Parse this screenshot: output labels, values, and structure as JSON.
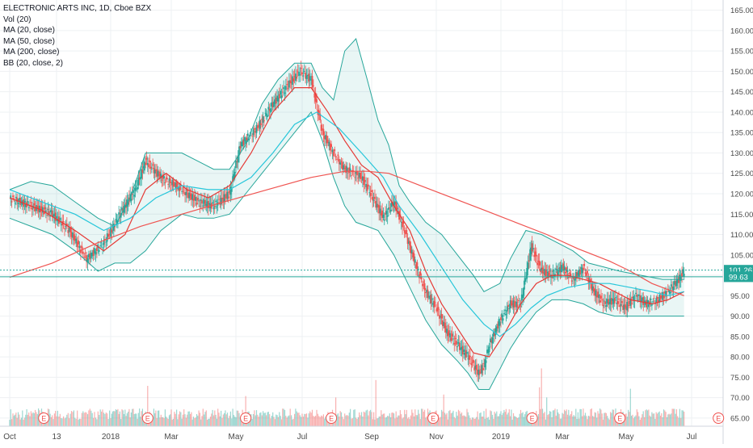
{
  "legend": {
    "title": "ELECTRONIC ARTS INC, 1D, Cboe BZX",
    "vol": "Vol (20)",
    "ma20": "MA (20, close)",
    "ma50": "MA (50, close)",
    "ma200": "MA (200, close)",
    "bb": "BB (20, close, 2)"
  },
  "chart_data": {
    "type": "candlestick",
    "title": "ELECTRONIC ARTS INC, 1D, Cboe BZX",
    "y_axis": {
      "ticks": [
        65,
        70,
        75,
        80,
        85,
        90,
        95,
        100,
        105,
        110,
        115,
        120,
        125,
        130,
        135,
        140,
        145,
        150,
        155,
        160,
        165
      ],
      "tick_labels": [
        "65.00",
        "70.00",
        "75.00",
        "80.00",
        "85.00",
        "90.00",
        "95.00",
        "100.00",
        "105.00",
        "110.00",
        "115.00",
        "120.00",
        "125.00",
        "130.00",
        "135.00",
        "140.00",
        "145.00",
        "150.00",
        "155.00",
        "160.00",
        "165.00"
      ],
      "range": [
        63,
        167.5
      ]
    },
    "x_axis": {
      "labels": [
        "Oct",
        "13",
        "2018",
        "Mar",
        "May",
        "Jul",
        "Sep",
        "Nov",
        "2019",
        "Mar",
        "May",
        "Jul"
      ],
      "label_days": [
        0,
        44,
        91,
        150,
        211,
        272,
        334,
        395,
        456,
        515,
        576,
        637
      ]
    },
    "price_labels": [
      {
        "value": 101.26,
        "text": "101.26",
        "color": "#26a69a"
      },
      {
        "value": 99.63,
        "text": "99.63",
        "color": "#26a69a"
      }
    ],
    "series": [
      {
        "name": "Close",
        "type": "close",
        "color": "#26a69a",
        "points": [
          [
            0,
            119
          ],
          [
            20,
            117
          ],
          [
            40,
            115
          ],
          [
            55,
            111
          ],
          [
            70,
            104
          ],
          [
            85,
            108
          ],
          [
            100,
            115
          ],
          [
            115,
            121
          ],
          [
            125,
            128
          ],
          [
            140,
            124
          ],
          [
            155,
            122
          ],
          [
            175,
            118
          ],
          [
            190,
            117
          ],
          [
            205,
            120
          ],
          [
            215,
            132
          ],
          [
            230,
            136
          ],
          [
            245,
            142
          ],
          [
            260,
            147
          ],
          [
            270,
            150
          ],
          [
            280,
            148
          ],
          [
            290,
            135
          ],
          [
            300,
            130
          ],
          [
            310,
            126
          ],
          [
            325,
            124
          ],
          [
            335,
            119
          ],
          [
            345,
            114
          ],
          [
            355,
            118
          ],
          [
            365,
            111
          ],
          [
            375,
            103
          ],
          [
            385,
            96
          ],
          [
            395,
            92
          ],
          [
            405,
            86
          ],
          [
            415,
            83
          ],
          [
            425,
            80
          ],
          [
            435,
            76
          ],
          [
            440,
            78
          ],
          [
            445,
            83
          ],
          [
            455,
            89
          ],
          [
            465,
            93
          ],
          [
            475,
            93
          ],
          [
            485,
            107
          ],
          [
            495,
            101
          ],
          [
            505,
            100
          ],
          [
            515,
            102
          ],
          [
            525,
            99
          ],
          [
            535,
            102
          ],
          [
            545,
            96
          ],
          [
            555,
            93
          ],
          [
            565,
            94
          ],
          [
            575,
            92
          ],
          [
            585,
            95
          ],
          [
            595,
            93
          ],
          [
            605,
            94
          ],
          [
            615,
            96
          ],
          [
            625,
            99
          ],
          [
            630,
            101
          ]
        ]
      },
      {
        "name": "MA (20, close)",
        "type": "line",
        "color": "#e53935",
        "points": [
          [
            0,
            119
          ],
          [
            30,
            116
          ],
          [
            60,
            111
          ],
          [
            85,
            106
          ],
          [
            105,
            110
          ],
          [
            125,
            121
          ],
          [
            145,
            125
          ],
          [
            165,
            121
          ],
          [
            185,
            119
          ],
          [
            205,
            122
          ],
          [
            225,
            130
          ],
          [
            245,
            140
          ],
          [
            265,
            146
          ],
          [
            280,
            146
          ],
          [
            295,
            140
          ],
          [
            310,
            133
          ],
          [
            325,
            127
          ],
          [
            340,
            124
          ],
          [
            355,
            117
          ],
          [
            370,
            111
          ],
          [
            385,
            101
          ],
          [
            400,
            93
          ],
          [
            415,
            87
          ],
          [
            430,
            81
          ],
          [
            445,
            80
          ],
          [
            460,
            86
          ],
          [
            475,
            93
          ],
          [
            490,
            98
          ],
          [
            505,
            100
          ],
          [
            520,
            100
          ],
          [
            535,
            99
          ],
          [
            550,
            98
          ],
          [
            565,
            96
          ],
          [
            580,
            94
          ],
          [
            600,
            93
          ],
          [
            615,
            94
          ],
          [
            630,
            96
          ]
        ]
      },
      {
        "name": "MA (50, close)",
        "type": "line",
        "color": "#26c6da",
        "points": [
          [
            0,
            121
          ],
          [
            30,
            118
          ],
          [
            60,
            115
          ],
          [
            85,
            111
          ],
          [
            110,
            114
          ],
          [
            135,
            119
          ],
          [
            160,
            122
          ],
          [
            185,
            121
          ],
          [
            205,
            121
          ],
          [
            225,
            124
          ],
          [
            245,
            130
          ],
          [
            265,
            137
          ],
          [
            285,
            140
          ],
          [
            305,
            136
          ],
          [
            325,
            130
          ],
          [
            345,
            124
          ],
          [
            360,
            117
          ],
          [
            380,
            110
          ],
          [
            400,
            102
          ],
          [
            420,
            94
          ],
          [
            440,
            88
          ],
          [
            455,
            85
          ],
          [
            470,
            88
          ],
          [
            485,
            92
          ],
          [
            500,
            95
          ],
          [
            520,
            97
          ],
          [
            540,
            98
          ],
          [
            560,
            98
          ],
          [
            580,
            97
          ],
          [
            600,
            96
          ],
          [
            615,
            95
          ],
          [
            630,
            96
          ]
        ]
      },
      {
        "name": "MA (200, close)",
        "type": "line",
        "color": "#ef5350",
        "points": [
          [
            0,
            99.5
          ],
          [
            40,
            103
          ],
          [
            80,
            108
          ],
          [
            120,
            112
          ],
          [
            160,
            115
          ],
          [
            200,
            118
          ],
          [
            240,
            121
          ],
          [
            280,
            124
          ],
          [
            310,
            125.5
          ],
          [
            330,
            125.5
          ],
          [
            350,
            125
          ],
          [
            380,
            122
          ],
          [
            410,
            119
          ],
          [
            440,
            116
          ],
          [
            470,
            113
          ],
          [
            500,
            110
          ],
          [
            530,
            106.5
          ],
          [
            560,
            103.5
          ],
          [
            580,
            101
          ],
          [
            600,
            98
          ],
          [
            620,
            96
          ],
          [
            630,
            95
          ]
        ]
      },
      {
        "name": "BB Upper",
        "type": "band-upper",
        "color": "#26a69a",
        "points": [
          [
            0,
            121
          ],
          [
            20,
            123
          ],
          [
            40,
            122
          ],
          [
            60,
            118
          ],
          [
            80,
            114
          ],
          [
            95,
            112
          ],
          [
            110,
            119
          ],
          [
            125,
            130
          ],
          [
            140,
            130
          ],
          [
            160,
            130
          ],
          [
            175,
            128
          ],
          [
            190,
            126
          ],
          [
            205,
            126
          ],
          [
            220,
            132
          ],
          [
            235,
            142
          ],
          [
            250,
            148
          ],
          [
            265,
            152
          ],
          [
            280,
            152
          ],
          [
            290,
            146
          ],
          [
            300,
            143
          ],
          [
            310,
            155
          ],
          [
            320,
            158
          ],
          [
            330,
            148
          ],
          [
            340,
            138
          ],
          [
            350,
            132
          ],
          [
            360,
            122
          ],
          [
            370,
            118
          ],
          [
            385,
            113
          ],
          [
            400,
            110
          ],
          [
            415,
            105
          ],
          [
            430,
            100
          ],
          [
            440,
            96
          ],
          [
            455,
            98
          ],
          [
            465,
            104
          ],
          [
            480,
            111
          ],
          [
            495,
            110
          ],
          [
            510,
            108
          ],
          [
            525,
            106
          ],
          [
            540,
            103
          ],
          [
            555,
            102
          ],
          [
            570,
            101
          ],
          [
            590,
            100
          ],
          [
            610,
            99
          ],
          [
            630,
            99
          ]
        ]
      },
      {
        "name": "BB Lower",
        "type": "band-lower",
        "color": "#26a69a",
        "points": [
          [
            0,
            114
          ],
          [
            20,
            112
          ],
          [
            40,
            110
          ],
          [
            60,
            106
          ],
          [
            80,
            101
          ],
          [
            95,
            103
          ],
          [
            110,
            103
          ],
          [
            125,
            106
          ],
          [
            140,
            111
          ],
          [
            160,
            115
          ],
          [
            175,
            114
          ],
          [
            190,
            114
          ],
          [
            205,
            115
          ],
          [
            220,
            120
          ],
          [
            235,
            125
          ],
          [
            250,
            130
          ],
          [
            265,
            135
          ],
          [
            280,
            140
          ],
          [
            290,
            133
          ],
          [
            300,
            124
          ],
          [
            310,
            117
          ],
          [
            320,
            113
          ],
          [
            330,
            112
          ],
          [
            340,
            111
          ],
          [
            355,
            105
          ],
          [
            370,
            97
          ],
          [
            385,
            89
          ],
          [
            400,
            83
          ],
          [
            415,
            79
          ],
          [
            425,
            76
          ],
          [
            435,
            72
          ],
          [
            445,
            72
          ],
          [
            455,
            77
          ],
          [
            465,
            82
          ],
          [
            475,
            86
          ],
          [
            490,
            91
          ],
          [
            505,
            94
          ],
          [
            520,
            94
          ],
          [
            535,
            93
          ],
          [
            550,
            91
          ],
          [
            565,
            90
          ],
          [
            580,
            90
          ],
          [
            600,
            90
          ],
          [
            615,
            90
          ],
          [
            630,
            90
          ]
        ]
      }
    ],
    "volume": {
      "color_up": "#26a69a",
      "color_down": "#ef5350",
      "spikes": [
        [
          127,
          2.0
        ],
        [
          220,
          1.3
        ],
        [
          302,
          1.2
        ],
        [
          338,
          2.4
        ],
        [
          402,
          1.4
        ],
        [
          493,
          1.9
        ],
        [
          495,
          3.2
        ],
        [
          500,
          1.2
        ],
        [
          580,
          1.8
        ]
      ]
    },
    "earnings_markers": [
      [
        "E",
        32
      ],
      [
        "E",
        127
      ],
      [
        "E",
        220
      ],
      [
        "E",
        298
      ],
      [
        "E",
        392
      ],
      [
        "E",
        486
      ],
      [
        "E",
        570
      ],
      [
        "E",
        662
      ]
    ]
  }
}
